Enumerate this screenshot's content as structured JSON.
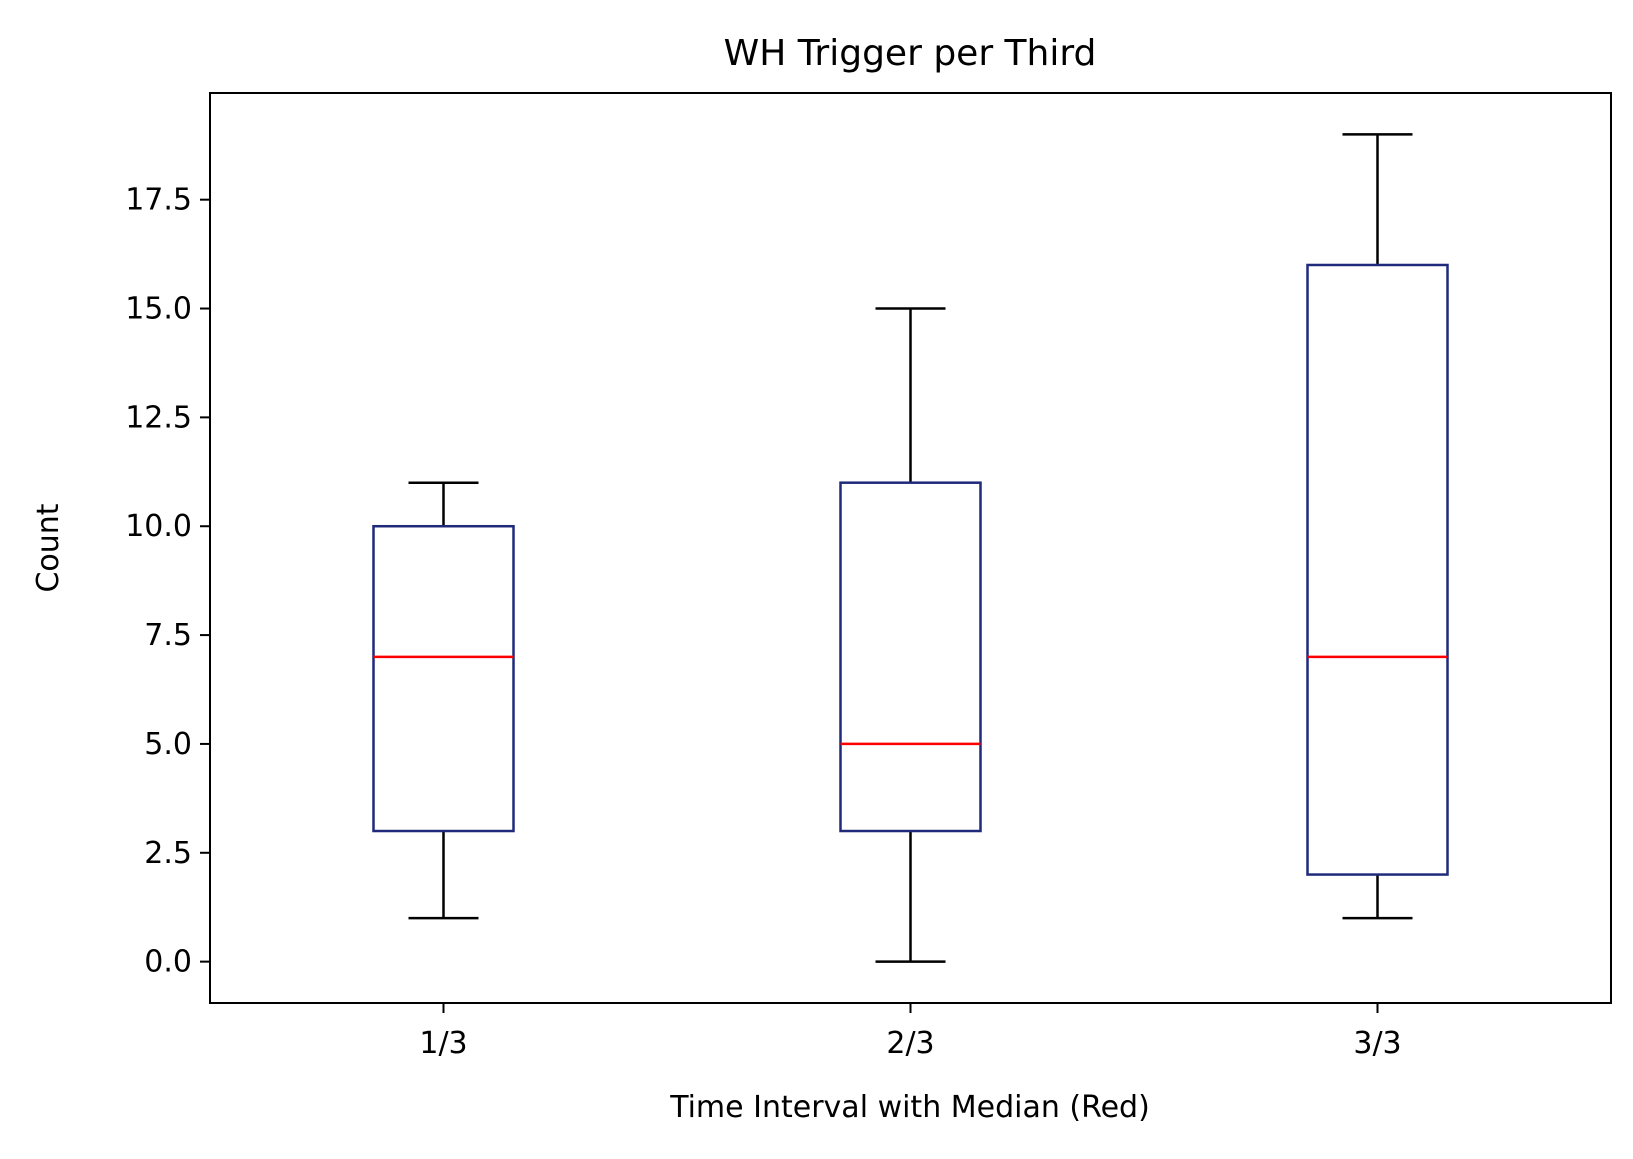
{
  "chart_data": {
    "type": "box",
    "title": "WH Trigger per Third",
    "xlabel": "Time Interval with Median (Red)",
    "ylabel": "Count",
    "categories": [
      "1/3",
      "2/3",
      "3/3"
    ],
    "boxes": [
      {
        "category": "1/3",
        "whisker_low": 1,
        "q1": 3,
        "median": 7,
        "q3": 10,
        "whisker_high": 11
      },
      {
        "category": "2/3",
        "whisker_low": 0,
        "q1": 3,
        "median": 5,
        "q3": 11,
        "whisker_high": 15
      },
      {
        "category": "3/3",
        "whisker_low": 1,
        "q1": 2,
        "median": 7,
        "q3": 16,
        "whisker_high": 19
      }
    ],
    "ylim": [
      -0.95,
      19.95
    ],
    "yticks": [
      0.0,
      2.5,
      5.0,
      7.5,
      10.0,
      12.5,
      15.0,
      17.5
    ],
    "ytick_labels": [
      "0.0",
      "2.5",
      "5.0",
      "7.5",
      "10.0",
      "12.5",
      "15.0",
      "17.5"
    ],
    "grid": false,
    "colors": {
      "box": "#1f2a7a",
      "median": "#ff0000",
      "whisker": "#000000"
    }
  }
}
